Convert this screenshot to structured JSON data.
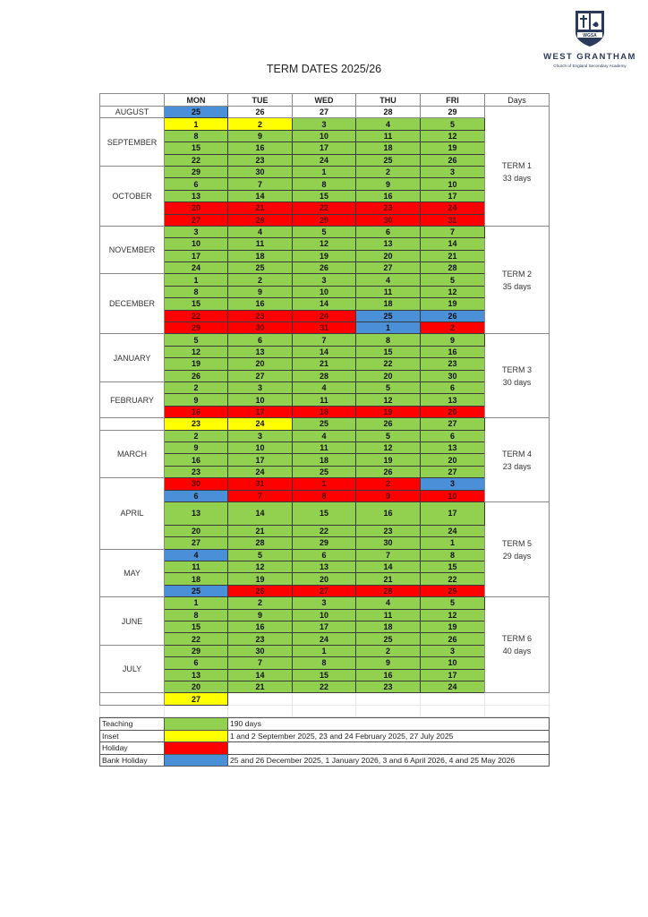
{
  "logo": {
    "school_name": "WEST GRANTHAM",
    "subtitle": "Church of England Secondary Academy",
    "crest_text": "WGSA"
  },
  "title": "TERM DATES 2025/26",
  "colors": {
    "teaching": "#92d050",
    "inset": "#ffff00",
    "holiday": "#ff0000",
    "bank_holiday": "#4a90d9"
  },
  "table": {
    "headers": [
      "",
      "MON",
      "TUE",
      "WED",
      "THU",
      "FRI",
      "Days"
    ],
    "months": {
      "august": "AUGUST",
      "september": "SEPTEMBER",
      "october": "OCTOBER",
      "november": "NOVEMBER",
      "december": "DECEMBER",
      "january": "JANUARY",
      "february": "FEBRUARY",
      "march": "MARCH",
      "april": "APRIL",
      "may": "MAY",
      "june": "JUNE",
      "july": "JULY"
    },
    "terms": [
      {
        "label": "TERM 1",
        "days": "33 days"
      },
      {
        "label": "TERM 2",
        "days": "35 days"
      },
      {
        "label": "TERM 3",
        "days": "30 days"
      },
      {
        "label": "TERM 4",
        "days": "23 days"
      },
      {
        "label": "TERM 5",
        "days": "29 days"
      },
      {
        "label": "TERM 6",
        "days": "40 days"
      }
    ],
    "weeks": [
      {
        "days": [
          "25",
          "26",
          "27",
          "28",
          "29"
        ],
        "types": [
          "b",
          "w",
          "w",
          "w",
          "w"
        ]
      },
      {
        "days": [
          "1",
          "2",
          "3",
          "4",
          "5"
        ],
        "types": [
          "y",
          "y",
          "g",
          "g",
          "g"
        ]
      },
      {
        "days": [
          "8",
          "9",
          "10",
          "11",
          "12"
        ],
        "types": [
          "g",
          "g",
          "g",
          "g",
          "g"
        ]
      },
      {
        "days": [
          "15",
          "16",
          "17",
          "18",
          "19"
        ],
        "types": [
          "g",
          "g",
          "g",
          "g",
          "g"
        ]
      },
      {
        "days": [
          "22",
          "23",
          "24",
          "25",
          "26"
        ],
        "types": [
          "g",
          "g",
          "g",
          "g",
          "g"
        ]
      },
      {
        "days": [
          "29",
          "30",
          "1",
          "2",
          "3"
        ],
        "types": [
          "g",
          "g",
          "g",
          "g",
          "g"
        ]
      },
      {
        "days": [
          "6",
          "7",
          "8",
          "9",
          "10"
        ],
        "types": [
          "g",
          "g",
          "g",
          "g",
          "g"
        ]
      },
      {
        "days": [
          "13",
          "14",
          "15",
          "16",
          "17"
        ],
        "types": [
          "g",
          "g",
          "g",
          "g",
          "g"
        ]
      },
      {
        "days": [
          "20",
          "21",
          "22",
          "23",
          "24"
        ],
        "types": [
          "r",
          "r",
          "r",
          "r",
          "r"
        ]
      },
      {
        "days": [
          "27",
          "28",
          "29",
          "30",
          "31"
        ],
        "types": [
          "r",
          "r",
          "r",
          "r",
          "r"
        ]
      },
      {
        "days": [
          "3",
          "4",
          "5",
          "6",
          "7"
        ],
        "types": [
          "g",
          "g",
          "g",
          "g",
          "g"
        ]
      },
      {
        "days": [
          "10",
          "11",
          "12",
          "13",
          "14"
        ],
        "types": [
          "g",
          "g",
          "g",
          "g",
          "g"
        ]
      },
      {
        "days": [
          "17",
          "18",
          "19",
          "20",
          "21"
        ],
        "types": [
          "g",
          "g",
          "g",
          "g",
          "g"
        ]
      },
      {
        "days": [
          "24",
          "25",
          "26",
          "27",
          "28"
        ],
        "types": [
          "g",
          "g",
          "g",
          "g",
          "g"
        ]
      },
      {
        "days": [
          "1",
          "2",
          "3",
          "4",
          "5"
        ],
        "types": [
          "g",
          "g",
          "g",
          "g",
          "g"
        ]
      },
      {
        "days": [
          "8",
          "9",
          "10",
          "11",
          "12"
        ],
        "types": [
          "g",
          "g",
          "g",
          "g",
          "g"
        ]
      },
      {
        "days": [
          "15",
          "16",
          "14",
          "18",
          "19"
        ],
        "types": [
          "g",
          "g",
          "g",
          "g",
          "g"
        ]
      },
      {
        "days": [
          "22",
          "23",
          "24",
          "25",
          "26"
        ],
        "types": [
          "r",
          "r",
          "r",
          "b",
          "b"
        ]
      },
      {
        "days": [
          "29",
          "30",
          "31",
          "1",
          "2"
        ],
        "types": [
          "r",
          "r",
          "r",
          "b",
          "r"
        ]
      },
      {
        "days": [
          "5",
          "6",
          "7",
          "8",
          "9"
        ],
        "types": [
          "g",
          "g",
          "g",
          "g",
          "g"
        ]
      },
      {
        "days": [
          "12",
          "13",
          "14",
          "15",
          "16"
        ],
        "types": [
          "g",
          "g",
          "g",
          "g",
          "g"
        ]
      },
      {
        "days": [
          "19",
          "20",
          "21",
          "22",
          "23"
        ],
        "types": [
          "g",
          "g",
          "g",
          "g",
          "g"
        ]
      },
      {
        "days": [
          "26",
          "27",
          "28",
          "20",
          "30"
        ],
        "types": [
          "g",
          "g",
          "g",
          "g",
          "g"
        ]
      },
      {
        "days": [
          "2",
          "3",
          "4",
          "5",
          "6"
        ],
        "types": [
          "g",
          "g",
          "g",
          "g",
          "g"
        ]
      },
      {
        "days": [
          "9",
          "10",
          "11",
          "12",
          "13"
        ],
        "types": [
          "g",
          "g",
          "g",
          "g",
          "g"
        ]
      },
      {
        "days": [
          "16",
          "17",
          "18",
          "19",
          "20"
        ],
        "types": [
          "r",
          "r",
          "r",
          "r",
          "r"
        ]
      },
      {
        "days": [
          "23",
          "24",
          "25",
          "26",
          "27"
        ],
        "types": [
          "y",
          "y",
          "g",
          "g",
          "g"
        ]
      },
      {
        "days": [
          "2",
          "3",
          "4",
          "5",
          "6"
        ],
        "types": [
          "g",
          "g",
          "g",
          "g",
          "g"
        ]
      },
      {
        "days": [
          "9",
          "10",
          "11",
          "12",
          "13"
        ],
        "types": [
          "g",
          "g",
          "g",
          "g",
          "g"
        ]
      },
      {
        "days": [
          "16",
          "17",
          "18",
          "19",
          "20"
        ],
        "types": [
          "g",
          "g",
          "g",
          "g",
          "g"
        ]
      },
      {
        "days": [
          "23",
          "24",
          "25",
          "26",
          "27"
        ],
        "types": [
          "g",
          "g",
          "g",
          "g",
          "g"
        ]
      },
      {
        "days": [
          "30",
          "31",
          "1",
          "2",
          "3"
        ],
        "types": [
          "r",
          "r",
          "r",
          "r",
          "b"
        ]
      },
      {
        "days": [
          "6",
          "7",
          "8",
          "9",
          "10"
        ],
        "types": [
          "b",
          "r",
          "r",
          "r",
          "r"
        ]
      },
      {
        "days": [
          "13",
          "14",
          "15",
          "16",
          "17"
        ],
        "types": [
          "g",
          "g",
          "g",
          "g",
          "g"
        ]
      },
      {
        "days": [
          "20",
          "21",
          "22",
          "23",
          "24"
        ],
        "types": [
          "g",
          "g",
          "g",
          "g",
          "g"
        ]
      },
      {
        "days": [
          "27",
          "28",
          "29",
          "30",
          "1"
        ],
        "types": [
          "g",
          "g",
          "g",
          "g",
          "g"
        ]
      },
      {
        "days": [
          "4",
          "5",
          "6",
          "7",
          "8"
        ],
        "types": [
          "b",
          "g",
          "g",
          "g",
          "g"
        ]
      },
      {
        "days": [
          "11",
          "12",
          "13",
          "14",
          "15"
        ],
        "types": [
          "g",
          "g",
          "g",
          "g",
          "g"
        ]
      },
      {
        "days": [
          "18",
          "19",
          "20",
          "21",
          "22"
        ],
        "types": [
          "g",
          "g",
          "g",
          "g",
          "g"
        ]
      },
      {
        "days": [
          "25",
          "26",
          "27",
          "28",
          "29"
        ],
        "types": [
          "b",
          "r",
          "r",
          "r",
          "r"
        ]
      },
      {
        "days": [
          "1",
          "2",
          "3",
          "4",
          "5"
        ],
        "types": [
          "g",
          "g",
          "g",
          "g",
          "g"
        ]
      },
      {
        "days": [
          "8",
          "9",
          "10",
          "11",
          "12"
        ],
        "types": [
          "g",
          "g",
          "g",
          "g",
          "g"
        ]
      },
      {
        "days": [
          "15",
          "16",
          "17",
          "18",
          "19"
        ],
        "types": [
          "g",
          "g",
          "g",
          "g",
          "g"
        ]
      },
      {
        "days": [
          "22",
          "23",
          "24",
          "25",
          "26"
        ],
        "types": [
          "g",
          "g",
          "g",
          "g",
          "g"
        ]
      },
      {
        "days": [
          "29",
          "30",
          "1",
          "2",
          "3"
        ],
        "types": [
          "g",
          "g",
          "g",
          "g",
          "g"
        ]
      },
      {
        "days": [
          "6",
          "7",
          "8",
          "9",
          "10"
        ],
        "types": [
          "g",
          "g",
          "g",
          "g",
          "g"
        ]
      },
      {
        "days": [
          "13",
          "14",
          "15",
          "16",
          "17"
        ],
        "types": [
          "g",
          "g",
          "g",
          "g",
          "g"
        ]
      },
      {
        "days": [
          "20",
          "21",
          "22",
          "23",
          "24"
        ],
        "types": [
          "g",
          "g",
          "g",
          "g",
          "g"
        ]
      },
      {
        "days": [
          "27",
          "",
          "",
          "",
          ""
        ],
        "types": [
          "y",
          "e",
          "e",
          "e",
          "e"
        ]
      }
    ]
  },
  "legend": [
    {
      "label": "Teaching",
      "note": "190 days",
      "type": "g"
    },
    {
      "label": "Inset",
      "note": "1 and 2 September 2025, 23 and 24 February 2025, 27 July 2025",
      "type": "y"
    },
    {
      "label": "Holiday",
      "note": "",
      "type": "r"
    },
    {
      "label": "Bank Holiday",
      "note": "25 and 26 December 2025, 1 January 2026, 3 and 6 April 2026, 4 and 25 May 2026",
      "type": "b"
    }
  ]
}
